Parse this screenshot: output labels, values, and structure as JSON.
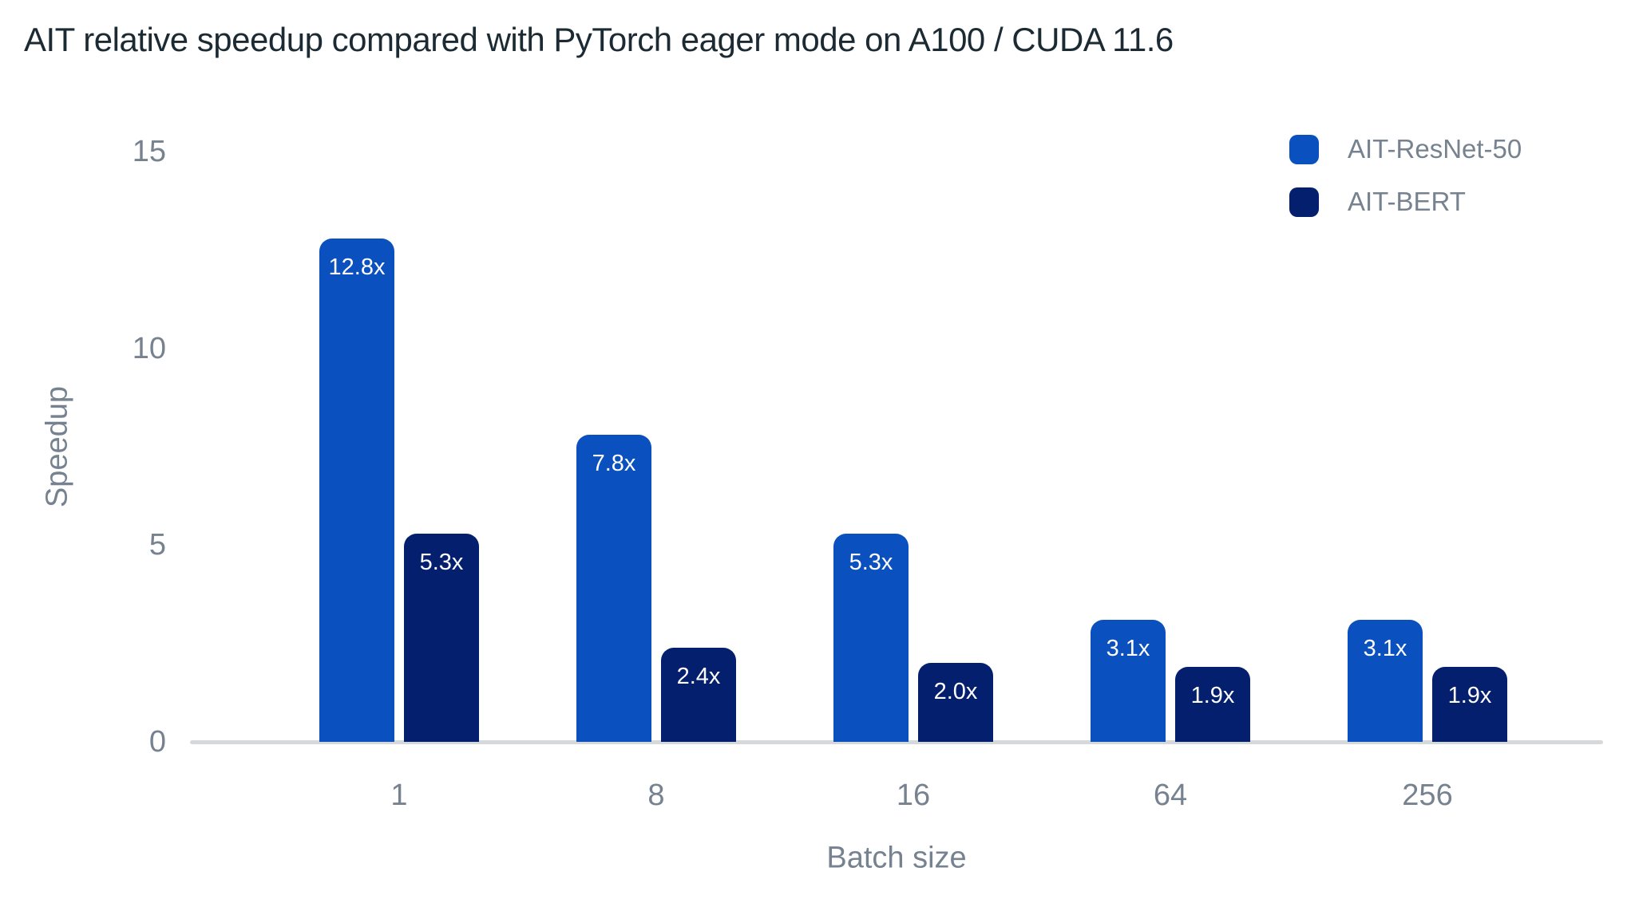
{
  "chart_data": {
    "type": "bar",
    "title": "AIT relative speedup compared with PyTorch eager mode on A100 / CUDA 11.6",
    "xlabel": "Batch size",
    "ylabel": "Speedup",
    "categories": [
      "1",
      "8",
      "16",
      "64",
      "256"
    ],
    "series": [
      {
        "name": "AIT-ResNet-50",
        "color": "#0A50BE",
        "values": [
          12.8,
          7.8,
          5.3,
          3.1,
          3.1
        ],
        "labels": [
          "12.8x",
          "7.8x",
          "5.3x",
          "3.1x",
          "3.1x"
        ]
      },
      {
        "name": "AIT-BERT",
        "color": "#041F6E",
        "values": [
          5.3,
          2.4,
          2.0,
          1.9,
          1.9
        ],
        "labels": [
          "5.3x",
          "2.4x",
          "2.0x",
          "1.9x",
          "1.9x"
        ]
      }
    ],
    "ylim": [
      0,
      15
    ],
    "yticks": [
      0,
      5,
      10,
      15
    ],
    "grid": false,
    "legend_position": "top-right",
    "bar_label_position": "inside-top"
  },
  "colors": {
    "background": "#FFFFFF",
    "title_text": "#1C2B33",
    "axis_text": "#76828F",
    "axis_line": "#D5D9DC",
    "bar_label": "#FFFFFF"
  }
}
